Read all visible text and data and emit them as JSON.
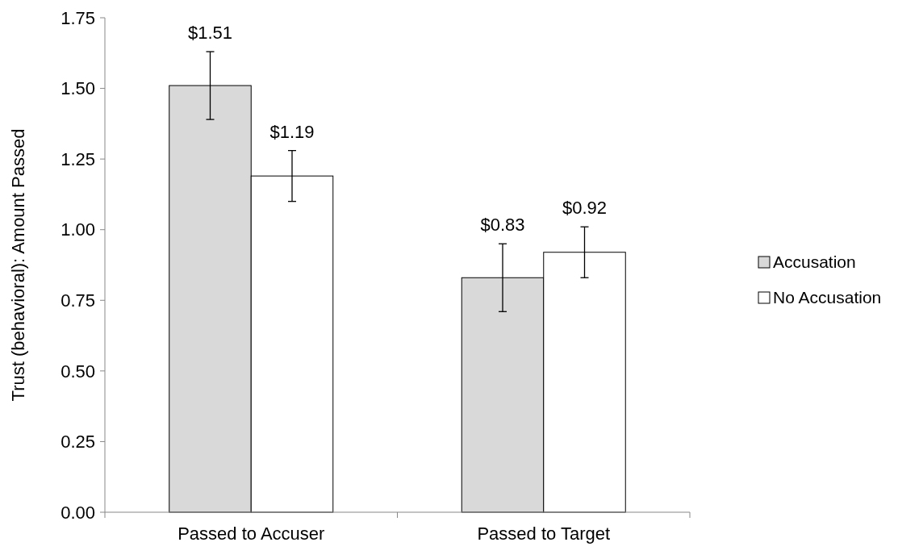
{
  "chart_data": {
    "type": "bar",
    "ylabel": "Trust (behavioral): Amount Passed",
    "categories": [
      "Passed to Accuser",
      "Passed to Target"
    ],
    "series": [
      {
        "name": "Accusation",
        "color": "#d9d9d9",
        "values": [
          1.51,
          0.83
        ],
        "errors": [
          0.12,
          0.12
        ],
        "value_labels": [
          "$1.51",
          "$0.83"
        ]
      },
      {
        "name": "No Accusation",
        "color": "#ffffff",
        "values": [
          1.19,
          0.92
        ],
        "errors": [
          0.09,
          0.09
        ],
        "value_labels": [
          "$1.19",
          "$0.92"
        ]
      }
    ],
    "ylim": [
      0,
      1.75
    ],
    "yticks": [
      {
        "value": 0,
        "label": "0.00"
      },
      {
        "value": 0.25,
        "label": "0.25"
      },
      {
        "value": 0.5,
        "label": "0.50"
      },
      {
        "value": 0.75,
        "label": "0.75"
      },
      {
        "value": 1,
        "label": "1.00"
      },
      {
        "value": 1.25,
        "label": "1.25"
      },
      {
        "value": 1.5,
        "label": "1.50"
      },
      {
        "value": 1.75,
        "label": "1.75"
      }
    ],
    "grid": false,
    "legend": "right"
  }
}
